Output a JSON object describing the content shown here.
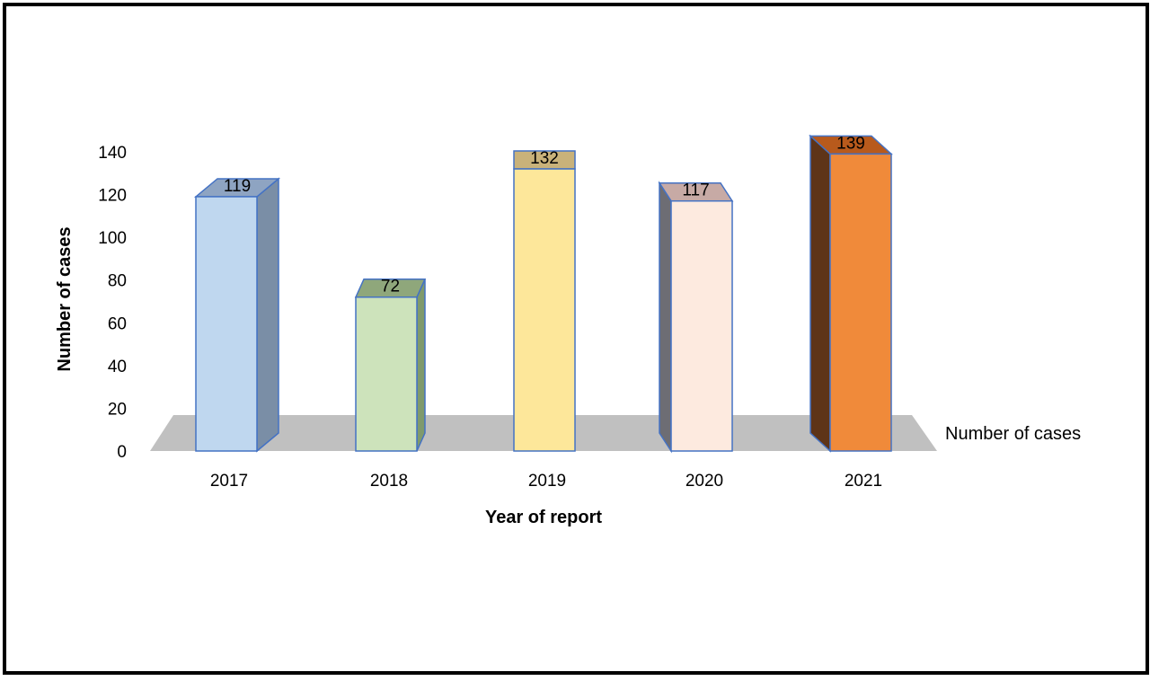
{
  "chart_data": {
    "type": "bar",
    "categories": [
      "2017",
      "2018",
      "2019",
      "2020",
      "2021"
    ],
    "series": [
      {
        "name": "Number of cases",
        "values": [
          119,
          72,
          132,
          117,
          139
        ]
      }
    ],
    "data_labels": [
      "119",
      "72",
      "132",
      "117",
      "139"
    ],
    "title": "",
    "xlabel": "Year of report",
    "ylabel": "Number of cases",
    "ylim": [
      0,
      140
    ],
    "yticks": [
      0,
      20,
      40,
      60,
      80,
      100,
      120,
      140
    ],
    "grid": false,
    "legend": "right",
    "style": "3d-column",
    "bar_colors": [
      {
        "front": "#bfd7ef",
        "top": "#8ea4c2",
        "side": "#7a8ea6",
        "edge": "#4472c4"
      },
      {
        "front": "#cde3bb",
        "top": "#8fa77b",
        "side": "#7f9a6c",
        "edge": "#4472c4"
      },
      {
        "front": "#fde79a",
        "top": "#c9b27a",
        "side": "#a8966a",
        "edge": "#4472c4"
      },
      {
        "front": "#fdeadf",
        "top": "#c7aaa5",
        "side": "#6d6d74",
        "edge": "#4472c4"
      },
      {
        "front": "#f08a3a",
        "top": "#b85a1c",
        "side": "#5e3418",
        "edge": "#4472c4"
      }
    ],
    "floor_color": "#c0c0c0"
  }
}
